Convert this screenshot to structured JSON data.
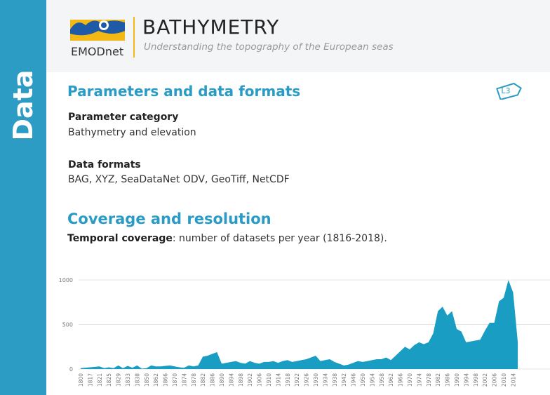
{
  "sidebar": {
    "label": "Data"
  },
  "header": {
    "brand": "EMODnet",
    "title": "BATHYMETRY",
    "subtitle": "Understanding the topography of the European seas"
  },
  "badge": "L3",
  "sections": [
    {
      "heading": "Parameters and data formats",
      "items": [
        {
          "label": "Parameter category",
          "value": "Bathymetry and elevation"
        },
        {
          "label": "Data formats",
          "value": "BAG, XYZ, SeaDataNet ODV, GeoTiff, NetCDF"
        }
      ]
    },
    {
      "heading": "Coverage and resolution",
      "caption": {
        "bold": "Temporal coverage",
        "text": ": number of datasets per year (1816-2018)."
      }
    }
  ],
  "chart_data": {
    "type": "area",
    "color": "#1a9dc3",
    "grid": true,
    "categories": [
      "1800",
      null,
      "1817",
      null,
      "1821",
      null,
      "1825",
      null,
      "1829",
      null,
      "1833",
      null,
      "1838",
      null,
      "1850",
      null,
      "1862",
      null,
      "1866",
      null,
      "1870",
      null,
      "1874",
      null,
      "1878",
      null,
      "1882",
      null,
      "1886",
      null,
      "1890",
      null,
      "1894",
      null,
      "1898",
      null,
      "1902",
      null,
      "1906",
      null,
      "1910",
      null,
      "1914",
      null,
      "1918",
      null,
      "1922",
      null,
      "1926",
      null,
      "1930",
      null,
      "1934",
      null,
      "1938",
      null,
      "1942",
      null,
      "1946",
      null,
      "1950",
      null,
      "1954",
      null,
      "1958",
      null,
      "1962",
      null,
      "1966",
      null,
      "1970",
      null,
      "1974",
      null,
      "1978",
      null,
      "1982",
      null,
      "1986",
      null,
      "1990",
      null,
      "1994",
      null,
      "1998",
      null,
      "2002",
      null,
      "2006",
      null,
      "2010",
      null,
      "2014",
      null
    ],
    "values": [
      10,
      15,
      20,
      25,
      30,
      10,
      20,
      10,
      40,
      10,
      35,
      15,
      40,
      5,
      10,
      40,
      30,
      30,
      35,
      40,
      30,
      20,
      15,
      40,
      30,
      40,
      140,
      150,
      170,
      190,
      60,
      70,
      80,
      90,
      70,
      60,
      90,
      70,
      60,
      80,
      80,
      90,
      70,
      90,
      100,
      80,
      90,
      100,
      110,
      130,
      150,
      90,
      100,
      110,
      80,
      60,
      40,
      50,
      70,
      90,
      80,
      90,
      100,
      110,
      110,
      130,
      100,
      150,
      200,
      250,
      220,
      270,
      300,
      280,
      300,
      400,
      650,
      700,
      600,
      650,
      450,
      420,
      300,
      310,
      320,
      330,
      430,
      520,
      520,
      760,
      800,
      1000,
      860,
      300
    ],
    "ylim": [
      0,
      1000
    ],
    "yticks": [
      0,
      500,
      1000
    ]
  }
}
